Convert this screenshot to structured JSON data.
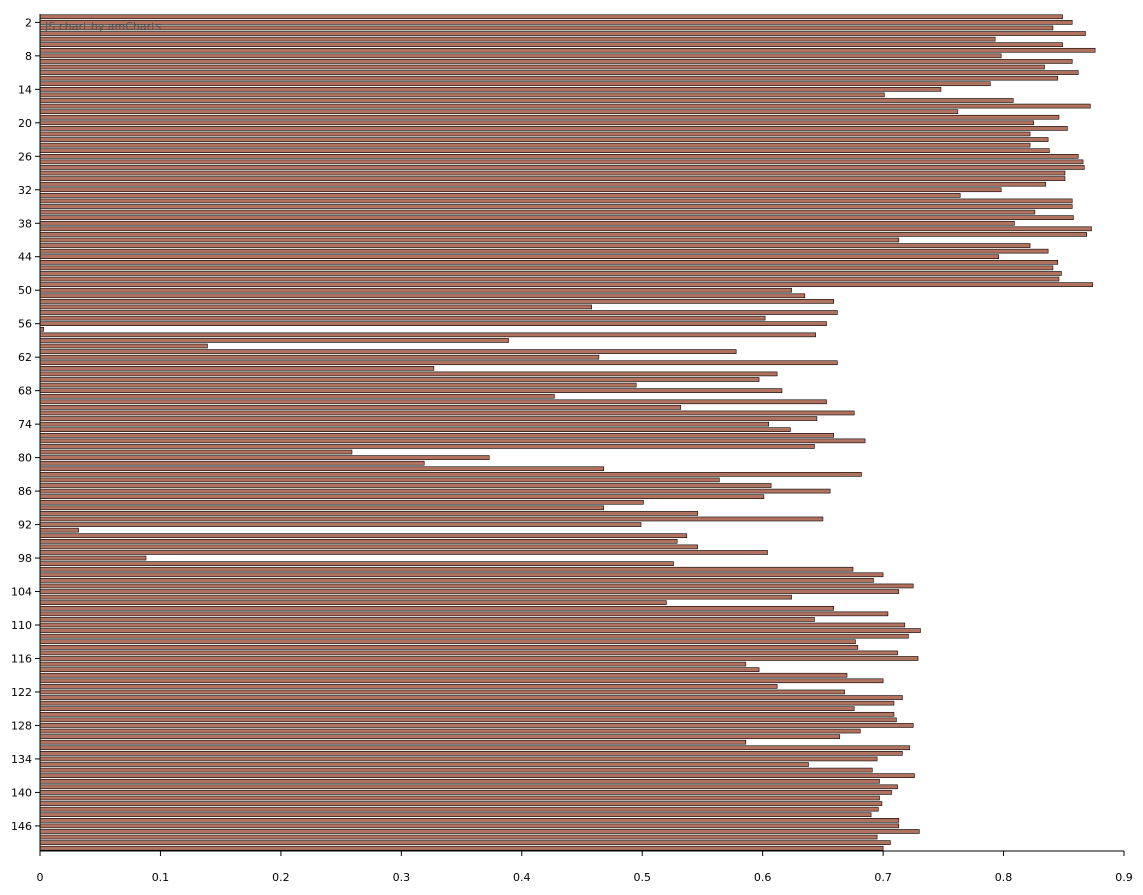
{
  "credit": "JS chart by amCharts",
  "colors": {
    "bar_fill": "#B1735F",
    "bar_stroke": "#000000",
    "axis": "#000000"
  },
  "chart_data": {
    "type": "bar",
    "orientation": "horizontal",
    "title": "",
    "xlabel": "",
    "ylabel": "",
    "xlim": [
      0,
      0.9
    ],
    "x_ticks": [
      0,
      0.1,
      0.2,
      0.3,
      0.4,
      0.5,
      0.6,
      0.7,
      0.8,
      0.9
    ],
    "x_tick_labels": [
      "0",
      "0.1",
      "0.2",
      "0.3",
      "0.4",
      "0.5",
      "0.6",
      "0.7",
      "0.8",
      "0.9"
    ],
    "category_start": 1,
    "category_end": 150,
    "y_tick_labels": [
      "2",
      "8",
      "14",
      "20",
      "26",
      "32",
      "38",
      "44",
      "50",
      "56",
      "62",
      "68",
      "74",
      "80",
      "86",
      "92",
      "98",
      "104",
      "110",
      "116",
      "122",
      "128",
      "134",
      "140",
      "146"
    ],
    "grid": false,
    "legend": "none",
    "values": [
      0.849,
      0.857,
      0.841,
      0.868,
      0.793,
      0.849,
      0.876,
      0.798,
      0.857,
      0.834,
      0.862,
      0.845,
      0.789,
      0.748,
      0.701,
      0.808,
      0.872,
      0.762,
      0.846,
      0.825,
      0.853,
      0.822,
      0.837,
      0.822,
      0.838,
      0.862,
      0.866,
      0.867,
      0.851,
      0.851,
      0.835,
      0.798,
      0.764,
      0.857,
      0.857,
      0.826,
      0.858,
      0.809,
      0.873,
      0.869,
      0.713,
      0.822,
      0.837,
      0.796,
      0.845,
      0.841,
      0.848,
      0.846,
      0.874,
      0.624,
      0.635,
      0.659,
      0.458,
      0.662,
      0.602,
      0.653,
      0.003,
      0.644,
      0.389,
      0.139,
      0.578,
      0.464,
      0.662,
      0.327,
      0.612,
      0.597,
      0.495,
      0.616,
      0.427,
      0.653,
      0.532,
      0.676,
      0.645,
      0.605,
      0.623,
      0.659,
      0.685,
      0.643,
      0.259,
      0.373,
      0.319,
      0.468,
      0.682,
      0.564,
      0.607,
      0.656,
      0.601,
      0.501,
      0.468,
      0.546,
      0.65,
      0.499,
      0.032,
      0.537,
      0.529,
      0.546,
      0.604,
      0.088,
      0.526,
      0.675,
      0.7,
      0.692,
      0.725,
      0.713,
      0.624,
      0.52,
      0.659,
      0.704,
      0.643,
      0.718,
      0.731,
      0.721,
      0.677,
      0.679,
      0.712,
      0.729,
      0.586,
      0.597,
      0.67,
      0.7,
      0.612,
      0.668,
      0.716,
      0.709,
      0.676,
      0.709,
      0.711,
      0.725,
      0.681,
      0.664,
      0.586,
      0.722,
      0.716,
      0.695,
      0.638,
      0.691,
      0.726,
      0.697,
      0.712,
      0.707,
      0.697,
      0.699,
      0.696,
      0.69,
      0.713,
      0.713,
      0.73,
      0.695,
      0.706,
      0.7
    ]
  }
}
